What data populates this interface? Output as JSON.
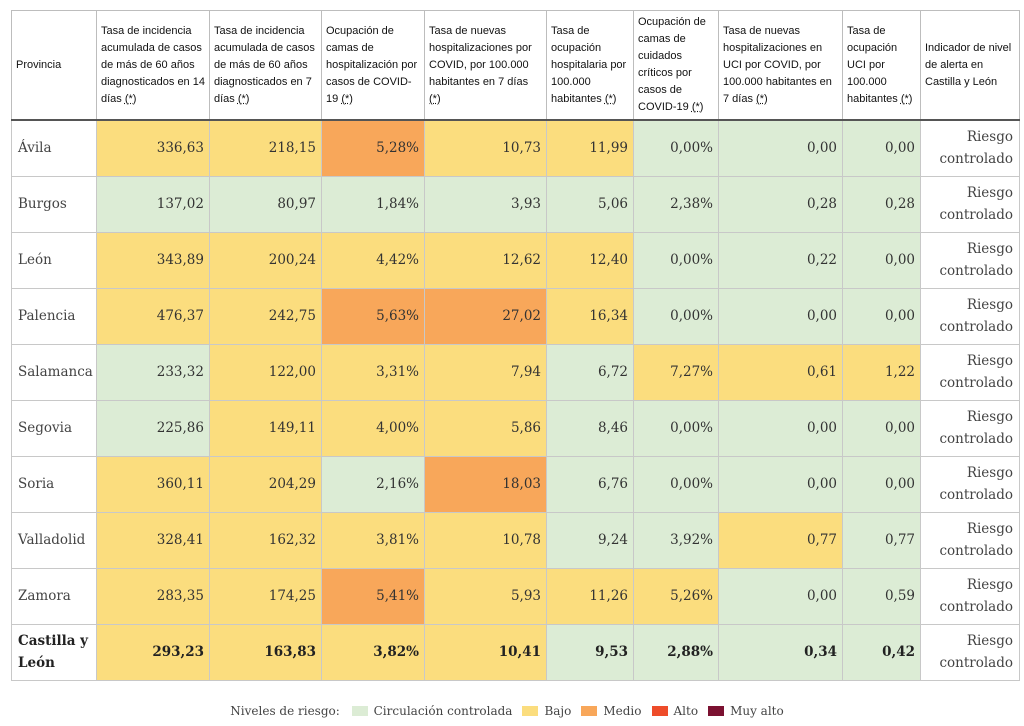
{
  "colors": {
    "green": "#dcecd5",
    "yellow": "#fbdd7e",
    "orange": "#f8a75a",
    "red": "#ee4c2a",
    "darkred": "#7b1131"
  },
  "headers": [
    "Provincia",
    "Tasa de incidencia acumulada de casos de más de 60 años diagnosticados en 14 días",
    "Tasa de incidencia acumulada de casos de más de 60 años diagnosticados en 7 días",
    "Ocupación de camas de hospitalización por casos de COVID-19",
    "Tasa de nuevas hospitalizaciones por COVID, por 100.000 habitantes en 7 días",
    "Tasa de ocupación hospitalaria por 100.000 habitantes",
    "Ocupación de camas de cuidados críticos por casos de COVID-19",
    "Tasa de nuevas hospitalizaciones en UCI por COVID, por 100.000 habitantes en 7 días",
    "Tasa de ocupación UCI por 100.000 habitantes",
    "Indicador de nivel de alerta en Castilla y León"
  ],
  "footnote_marker": "(*)",
  "rows": [
    {
      "province": "Ávila",
      "values": [
        "336,63",
        "218,15",
        "5,28%",
        "10,73",
        "11,99",
        "0,00%",
        "0,00",
        "0,00"
      ],
      "levels": [
        "yellow",
        "yellow",
        "orange",
        "yellow",
        "yellow",
        "green",
        "green",
        "green"
      ],
      "alert": "Riesgo controlado"
    },
    {
      "province": "Burgos",
      "values": [
        "137,02",
        "80,97",
        "1,84%",
        "3,93",
        "5,06",
        "2,38%",
        "0,28",
        "0,28"
      ],
      "levels": [
        "green",
        "green",
        "green",
        "green",
        "green",
        "green",
        "green",
        "green"
      ],
      "alert": "Riesgo controlado"
    },
    {
      "province": "León",
      "values": [
        "343,89",
        "200,24",
        "4,42%",
        "12,62",
        "12,40",
        "0,00%",
        "0,22",
        "0,00"
      ],
      "levels": [
        "yellow",
        "yellow",
        "yellow",
        "yellow",
        "yellow",
        "green",
        "green",
        "green"
      ],
      "alert": "Riesgo controlado"
    },
    {
      "province": "Palencia",
      "values": [
        "476,37",
        "242,75",
        "5,63%",
        "27,02",
        "16,34",
        "0,00%",
        "0,00",
        "0,00"
      ],
      "levels": [
        "yellow",
        "yellow",
        "orange",
        "orange",
        "yellow",
        "green",
        "green",
        "green"
      ],
      "alert": "Riesgo controlado"
    },
    {
      "province": "Salamanca",
      "values": [
        "233,32",
        "122,00",
        "3,31%",
        "7,94",
        "6,72",
        "7,27%",
        "0,61",
        "1,22"
      ],
      "levels": [
        "green",
        "yellow",
        "yellow",
        "yellow",
        "green",
        "yellow",
        "yellow",
        "yellow"
      ],
      "alert": "Riesgo controlado"
    },
    {
      "province": "Segovia",
      "values": [
        "225,86",
        "149,11",
        "4,00%",
        "5,86",
        "8,46",
        "0,00%",
        "0,00",
        "0,00"
      ],
      "levels": [
        "green",
        "yellow",
        "yellow",
        "yellow",
        "green",
        "green",
        "green",
        "green"
      ],
      "alert": "Riesgo controlado"
    },
    {
      "province": "Soria",
      "values": [
        "360,11",
        "204,29",
        "2,16%",
        "18,03",
        "6,76",
        "0,00%",
        "0,00",
        "0,00"
      ],
      "levels": [
        "yellow",
        "yellow",
        "green",
        "orange",
        "green",
        "green",
        "green",
        "green"
      ],
      "alert": "Riesgo controlado"
    },
    {
      "province": "Valladolid",
      "values": [
        "328,41",
        "162,32",
        "3,81%",
        "10,78",
        "9,24",
        "3,92%",
        "0,77",
        "0,77"
      ],
      "levels": [
        "yellow",
        "yellow",
        "yellow",
        "yellow",
        "green",
        "green",
        "yellow",
        "green"
      ],
      "alert": "Riesgo controlado"
    },
    {
      "province": "Zamora",
      "values": [
        "283,35",
        "174,25",
        "5,41%",
        "5,93",
        "11,26",
        "5,26%",
        "0,00",
        "0,59"
      ],
      "levels": [
        "yellow",
        "yellow",
        "orange",
        "yellow",
        "yellow",
        "yellow",
        "green",
        "green"
      ],
      "alert": "Riesgo controlado"
    },
    {
      "province": "Castilla y León",
      "values": [
        "293,23",
        "163,83",
        "3,82%",
        "10,41",
        "9,53",
        "2,88%",
        "0,34",
        "0,42"
      ],
      "levels": [
        "yellow",
        "yellow",
        "yellow",
        "yellow",
        "green",
        "green",
        "green",
        "green"
      ],
      "alert": "Riesgo controlado",
      "total": true
    }
  ],
  "legend": {
    "title": "Niveles de riesgo:",
    "items": [
      {
        "label": "Circulación controlada",
        "color": "green"
      },
      {
        "label": "Bajo",
        "color": "yellow"
      },
      {
        "label": "Medio",
        "color": "orange"
      },
      {
        "label": "Alto",
        "color": "red"
      },
      {
        "label": "Muy alto",
        "color": "darkred"
      }
    ]
  }
}
